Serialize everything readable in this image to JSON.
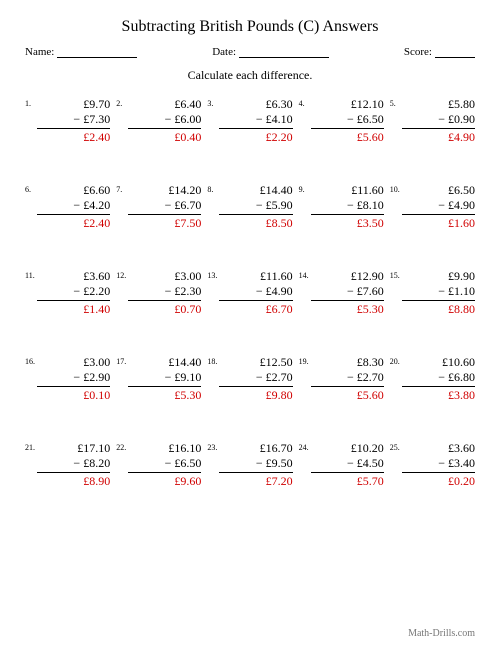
{
  "title": "Subtracting British Pounds (C) Answers",
  "labels": {
    "name": "Name:",
    "date": "Date:",
    "score": "Score:"
  },
  "instruction": "Calculate each difference.",
  "footer": "Math-Drills.com",
  "problems": [
    {
      "n": "1.",
      "a": "£9.70",
      "b": "£7.30",
      "r": "£2.40"
    },
    {
      "n": "2.",
      "a": "£6.40",
      "b": "£6.00",
      "r": "£0.40"
    },
    {
      "n": "3.",
      "a": "£6.30",
      "b": "£4.10",
      "r": "£2.20"
    },
    {
      "n": "4.",
      "a": "£12.10",
      "b": "£6.50",
      "r": "£5.60"
    },
    {
      "n": "5.",
      "a": "£5.80",
      "b": "£0.90",
      "r": "£4.90"
    },
    {
      "n": "6.",
      "a": "£6.60",
      "b": "£4.20",
      "r": "£2.40"
    },
    {
      "n": "7.",
      "a": "£14.20",
      "b": "£6.70",
      "r": "£7.50"
    },
    {
      "n": "8.",
      "a": "£14.40",
      "b": "£5.90",
      "r": "£8.50"
    },
    {
      "n": "9.",
      "a": "£11.60",
      "b": "£8.10",
      "r": "£3.50"
    },
    {
      "n": "10.",
      "a": "£6.50",
      "b": "£4.90",
      "r": "£1.60"
    },
    {
      "n": "11.",
      "a": "£3.60",
      "b": "£2.20",
      "r": "£1.40"
    },
    {
      "n": "12.",
      "a": "£3.00",
      "b": "£2.30",
      "r": "£0.70"
    },
    {
      "n": "13.",
      "a": "£11.60",
      "b": "£4.90",
      "r": "£6.70"
    },
    {
      "n": "14.",
      "a": "£12.90",
      "b": "£7.60",
      "r": "£5.30"
    },
    {
      "n": "15.",
      "a": "£9.90",
      "b": "£1.10",
      "r": "£8.80"
    },
    {
      "n": "16.",
      "a": "£3.00",
      "b": "£2.90",
      "r": "£0.10"
    },
    {
      "n": "17.",
      "a": "£14.40",
      "b": "£9.10",
      "r": "£5.30"
    },
    {
      "n": "18.",
      "a": "£12.50",
      "b": "£2.70",
      "r": "£9.80"
    },
    {
      "n": "19.",
      "a": "£8.30",
      "b": "£2.70",
      "r": "£5.60"
    },
    {
      "n": "20.",
      "a": "£10.60",
      "b": "£6.80",
      "r": "£3.80"
    },
    {
      "n": "21.",
      "a": "£17.10",
      "b": "£8.20",
      "r": "£8.90"
    },
    {
      "n": "22.",
      "a": "£16.10",
      "b": "£6.50",
      "r": "£9.60"
    },
    {
      "n": "23.",
      "a": "£16.70",
      "b": "£9.50",
      "r": "£7.20"
    },
    {
      "n": "24.",
      "a": "£10.20",
      "b": "£4.50",
      "r": "£5.70"
    },
    {
      "n": "25.",
      "a": "£3.60",
      "b": "£3.40",
      "r": "£0.20"
    }
  ]
}
